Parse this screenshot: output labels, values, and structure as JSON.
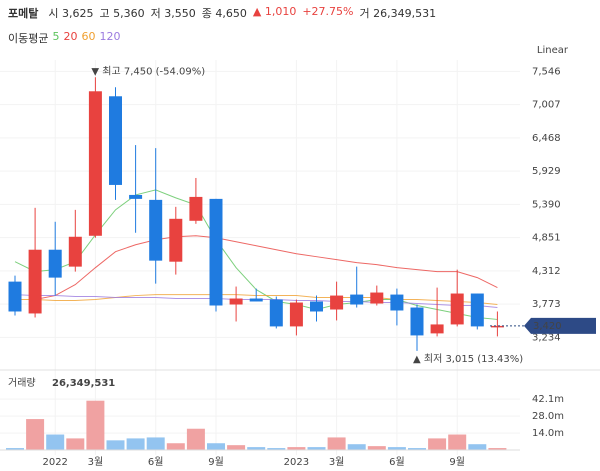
{
  "header": {
    "name": "포메탈",
    "items": [
      {
        "label": "시",
        "value": "3,625"
      },
      {
        "label": "고",
        "value": "5,360"
      },
      {
        "label": "저",
        "value": "3,550"
      },
      {
        "label": "종",
        "value": "4,650"
      }
    ],
    "change": "▲ 1,010",
    "change_pct": "+27.75%",
    "volume_label": "거",
    "volume": "26,349,531"
  },
  "chart_data": {
    "type": "candlestick",
    "scale": "Linear",
    "up_color": "#e8423f",
    "down_color": "#1f7be0",
    "categories": [
      null,
      null,
      "2022",
      null,
      "3월",
      null,
      null,
      "6월",
      null,
      null,
      "9월",
      null,
      null,
      null,
      "2023",
      null,
      "3월",
      null,
      null,
      "6월",
      null,
      null,
      "9월",
      null,
      null
    ],
    "open": [
      4138,
      3622,
      4655,
      4381,
      4881,
      7142,
      5543,
      5463,
      4461,
      5124,
      5479,
      3767,
      3864,
      3848,
      3412,
      3816,
      3686,
      3928,
      3783,
      3928,
      3718,
      3299,
      3444,
      3945,
      3396
    ],
    "high": [
      4235,
      5334,
      5108,
      5301,
      7450,
      7288,
      6351,
      6302,
      5350,
      5818,
      5479,
      4058,
      4025,
      3896,
      3848,
      3912,
      4138,
      4381,
      4074,
      4025,
      3767,
      4041,
      4332,
      3945,
      3654
    ],
    "low": [
      3589,
      3557,
      3912,
      4300,
      4849,
      5463,
      4930,
      4106,
      4252,
      5075,
      3654,
      3492,
      3816,
      3379,
      3266,
      3492,
      3509,
      3718,
      3751,
      3428,
      3015,
      3250,
      3412,
      3363,
      3250
    ],
    "close": [
      3654,
      4655,
      4203,
      4865,
      7223,
      5705,
      5479,
      4478,
      5156,
      5511,
      3751,
      3864,
      3816,
      3412,
      3799,
      3654,
      3912,
      3767,
      3961,
      3670,
      3266,
      3444,
      3945,
      3412,
      3420
    ],
    "ylim": [
      2900,
      7730
    ],
    "yticks": [
      {
        "value": 7546,
        "label": "7,546"
      },
      {
        "value": 7007,
        "label": "7,007"
      },
      {
        "value": 6468,
        "label": "6,468"
      },
      {
        "value": 5929,
        "label": "5,929"
      },
      {
        "value": 5390,
        "label": "5,390"
      },
      {
        "value": 4851,
        "label": "4,851"
      },
      {
        "value": 4312,
        "label": "4,312"
      },
      {
        "value": 3773,
        "label": "3,773"
      },
      {
        "value": 3234,
        "label": "3,234"
      }
    ],
    "last_price": {
      "value": 3420,
      "label": "3,420"
    },
    "high_annotation": "▼ 최고 7,450 (-54.09%)",
    "low_annotation": "▲ 최저 3,015 (13.43%)",
    "ma_title": "이동평균",
    "series": [
      {
        "name": "5",
        "color": "#5cc45c",
        "values": [
          4461,
          4300,
          4332,
          4461,
          4897,
          5301,
          5543,
          5624,
          5495,
          5382,
          4817,
          4364,
          4009,
          3816,
          3767,
          3686,
          3767,
          3799,
          3848,
          3848,
          3751,
          3686,
          3622,
          3557,
          3525
        ]
      },
      {
        "name": "20",
        "color": "#e8423f",
        "values": [
          null,
          3848,
          3912,
          4090,
          4364,
          4623,
          4736,
          4817,
          4865,
          4881,
          4849,
          4784,
          4720,
          4655,
          4590,
          4542,
          4494,
          4445,
          4413,
          4364,
          4332,
          4300,
          4300,
          4203,
          4041
        ]
      },
      {
        "name": "60",
        "color": "#f0a030",
        "values": [
          3848,
          3848,
          3832,
          3832,
          3848,
          3880,
          3912,
          3928,
          3928,
          3928,
          3928,
          3928,
          3912,
          3912,
          3912,
          3880,
          3880,
          3880,
          3880,
          3848,
          3848,
          3832,
          3816,
          3799,
          3767
        ]
      },
      {
        "name": "120",
        "color": "#9b7be0",
        "values": [
          3928,
          3912,
          3912,
          3896,
          3896,
          3880,
          3880,
          3880,
          3864,
          3864,
          3864,
          3848,
          3848,
          3848,
          3832,
          3832,
          3816,
          3816,
          3799,
          3799,
          3783,
          3767,
          3751,
          3751,
          3718
        ]
      }
    ],
    "volume": {
      "title": "거래량",
      "total": "26,349,531",
      "up_color": "#f0a2a2",
      "down_color": "#93c4f0",
      "values": [
        1.6,
        25.6,
        12.8,
        9.6,
        40.8,
        8,
        9.6,
        10.4,
        5.6,
        17.6,
        5.6,
        4,
        2.4,
        1.6,
        2.4,
        2.4,
        10.4,
        4.8,
        3.2,
        2.4,
        1.6,
        9.6,
        12.8,
        4.8,
        1.6
      ],
      "ylim": [
        0,
        48
      ],
      "yticks": [
        {
          "value": 42.1,
          "label": "42.1m"
        },
        {
          "value": 28,
          "label": "28.0m"
        },
        {
          "value": 14,
          "label": "14.0m"
        }
      ]
    }
  }
}
